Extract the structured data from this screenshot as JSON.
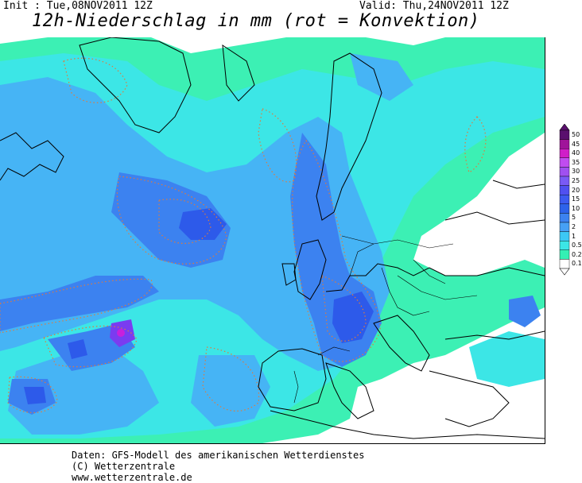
{
  "header": {
    "init": "Init : Tue,08NOV2011 12Z",
    "valid": "Valid: Thu,24NOV2011 12Z",
    "title": "12h-Niederschlag in mm (rot = Konvektion)"
  },
  "legend": {
    "levels": [
      "50",
      "45",
      "40",
      "35",
      "30",
      "25",
      "20",
      "15",
      "10",
      "5",
      "2",
      "1",
      "0.5",
      "0.2",
      "0.1"
    ],
    "colors": [
      "#5a0f6e",
      "#a0149a",
      "#d01ec8",
      "#c04cf0",
      "#a050f0",
      "#7a5af5",
      "#5050f0",
      "#3c5af0",
      "#2d62ea",
      "#3c82f0",
      "#46a0f5",
      "#3cc8f5",
      "#3ce6e6",
      "#34f0b4",
      "#ffffff"
    ]
  },
  "footer": {
    "line1": "Daten: GFS-Modell des amerikanischen Wetterdienstes",
    "line2": "(C) Wetterzentrale",
    "line3": "www.wetterzentrale.de"
  },
  "map": {
    "colors": {
      "light": "#3cf0b4",
      "cyan": "#3ce6e6",
      "sky": "#46b4f5",
      "blue": "#3c82f0",
      "deep": "#2d5aea",
      "violet": "#7a3cf0",
      "purple": "#c820dc",
      "convection": "#e07a3c",
      "coast": "#000000"
    }
  }
}
